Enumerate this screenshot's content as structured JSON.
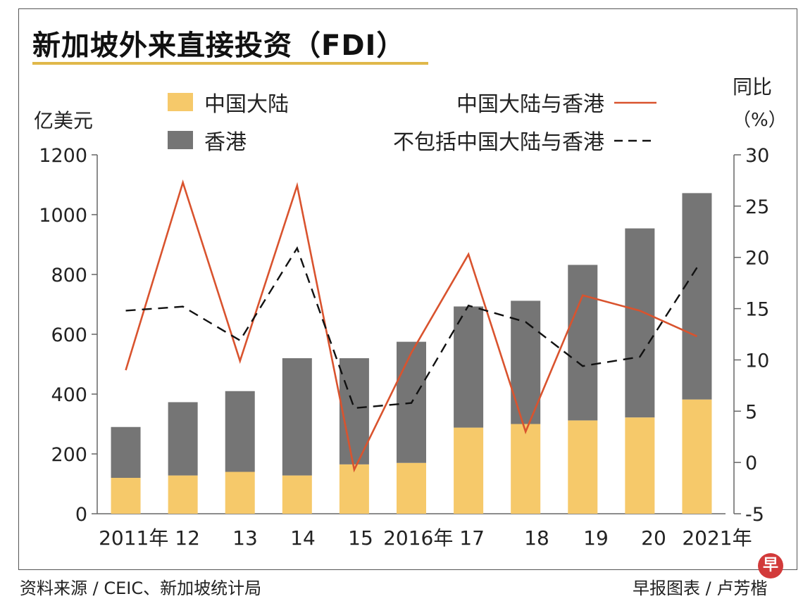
{
  "header": {
    "title": "新加坡外来直接投资（FDI）",
    "source": "资料来源 / CEIC、新加坡统计局",
    "credit": "早报图表 / 卢芳楷",
    "logo_text": "早"
  },
  "colors": {
    "mainland_bar": "#f6c96a",
    "hongkong_bar": "#757575",
    "line_combined": "#d9532e",
    "line_excl": "#111111",
    "title_rule": "#e0b84a"
  },
  "chart_data": {
    "type": "bar",
    "title": "新加坡外来直接投资（FDI）",
    "ylabel": "亿美元",
    "y2label_line1": "同比",
    "y2label_line2": "（%）",
    "ylim": [
      0,
      1200
    ],
    "y2lim": [
      -5,
      30
    ],
    "yticks": [
      "0",
      "200",
      "400",
      "600",
      "800",
      "1000",
      "1200"
    ],
    "y2ticks": [
      "-5",
      "0",
      "5",
      "10",
      "15",
      "20",
      "25",
      "30"
    ],
    "categories": [
      "2011年",
      "12",
      "13",
      "14",
      "15",
      "2016年",
      "17",
      "18",
      "19",
      "20",
      "2021年"
    ],
    "xtick_labels": [
      "2011年 12",
      "13",
      "14",
      "15",
      "2016年 17",
      "18",
      "19",
      "20",
      "2021年"
    ],
    "stacked_series": [
      {
        "name": "中国大陆",
        "values": [
          120,
          128,
          140,
          128,
          165,
          170,
          288,
          300,
          312,
          322,
          382
        ]
      },
      {
        "name": "香港",
        "values": [
          170,
          245,
          270,
          392,
          355,
          405,
          405,
          412,
          520,
          632,
          690
        ]
      }
    ],
    "line_series": [
      {
        "name": "中国大陆与香港",
        "style": "solid",
        "values": [
          9,
          27.3,
          9.9,
          27,
          -0.7,
          10.7,
          20.3,
          3,
          16.3,
          14.8,
          12.3
        ]
      },
      {
        "name": "不包括中国大陆与香港",
        "style": "dashed",
        "values": [
          14.8,
          15.2,
          11.9,
          20.9,
          5.3,
          5.8,
          15.3,
          13.7,
          9.4,
          10.3,
          19
        ]
      }
    ],
    "legend": [
      {
        "label": "中国大陆",
        "kind": "bar-mainland"
      },
      {
        "label": "香港",
        "kind": "bar-hongkong"
      },
      {
        "label": "中国大陆与香港",
        "kind": "line-solid"
      },
      {
        "label": "不包括中国大陆与香港",
        "kind": "line-dashed"
      }
    ]
  }
}
